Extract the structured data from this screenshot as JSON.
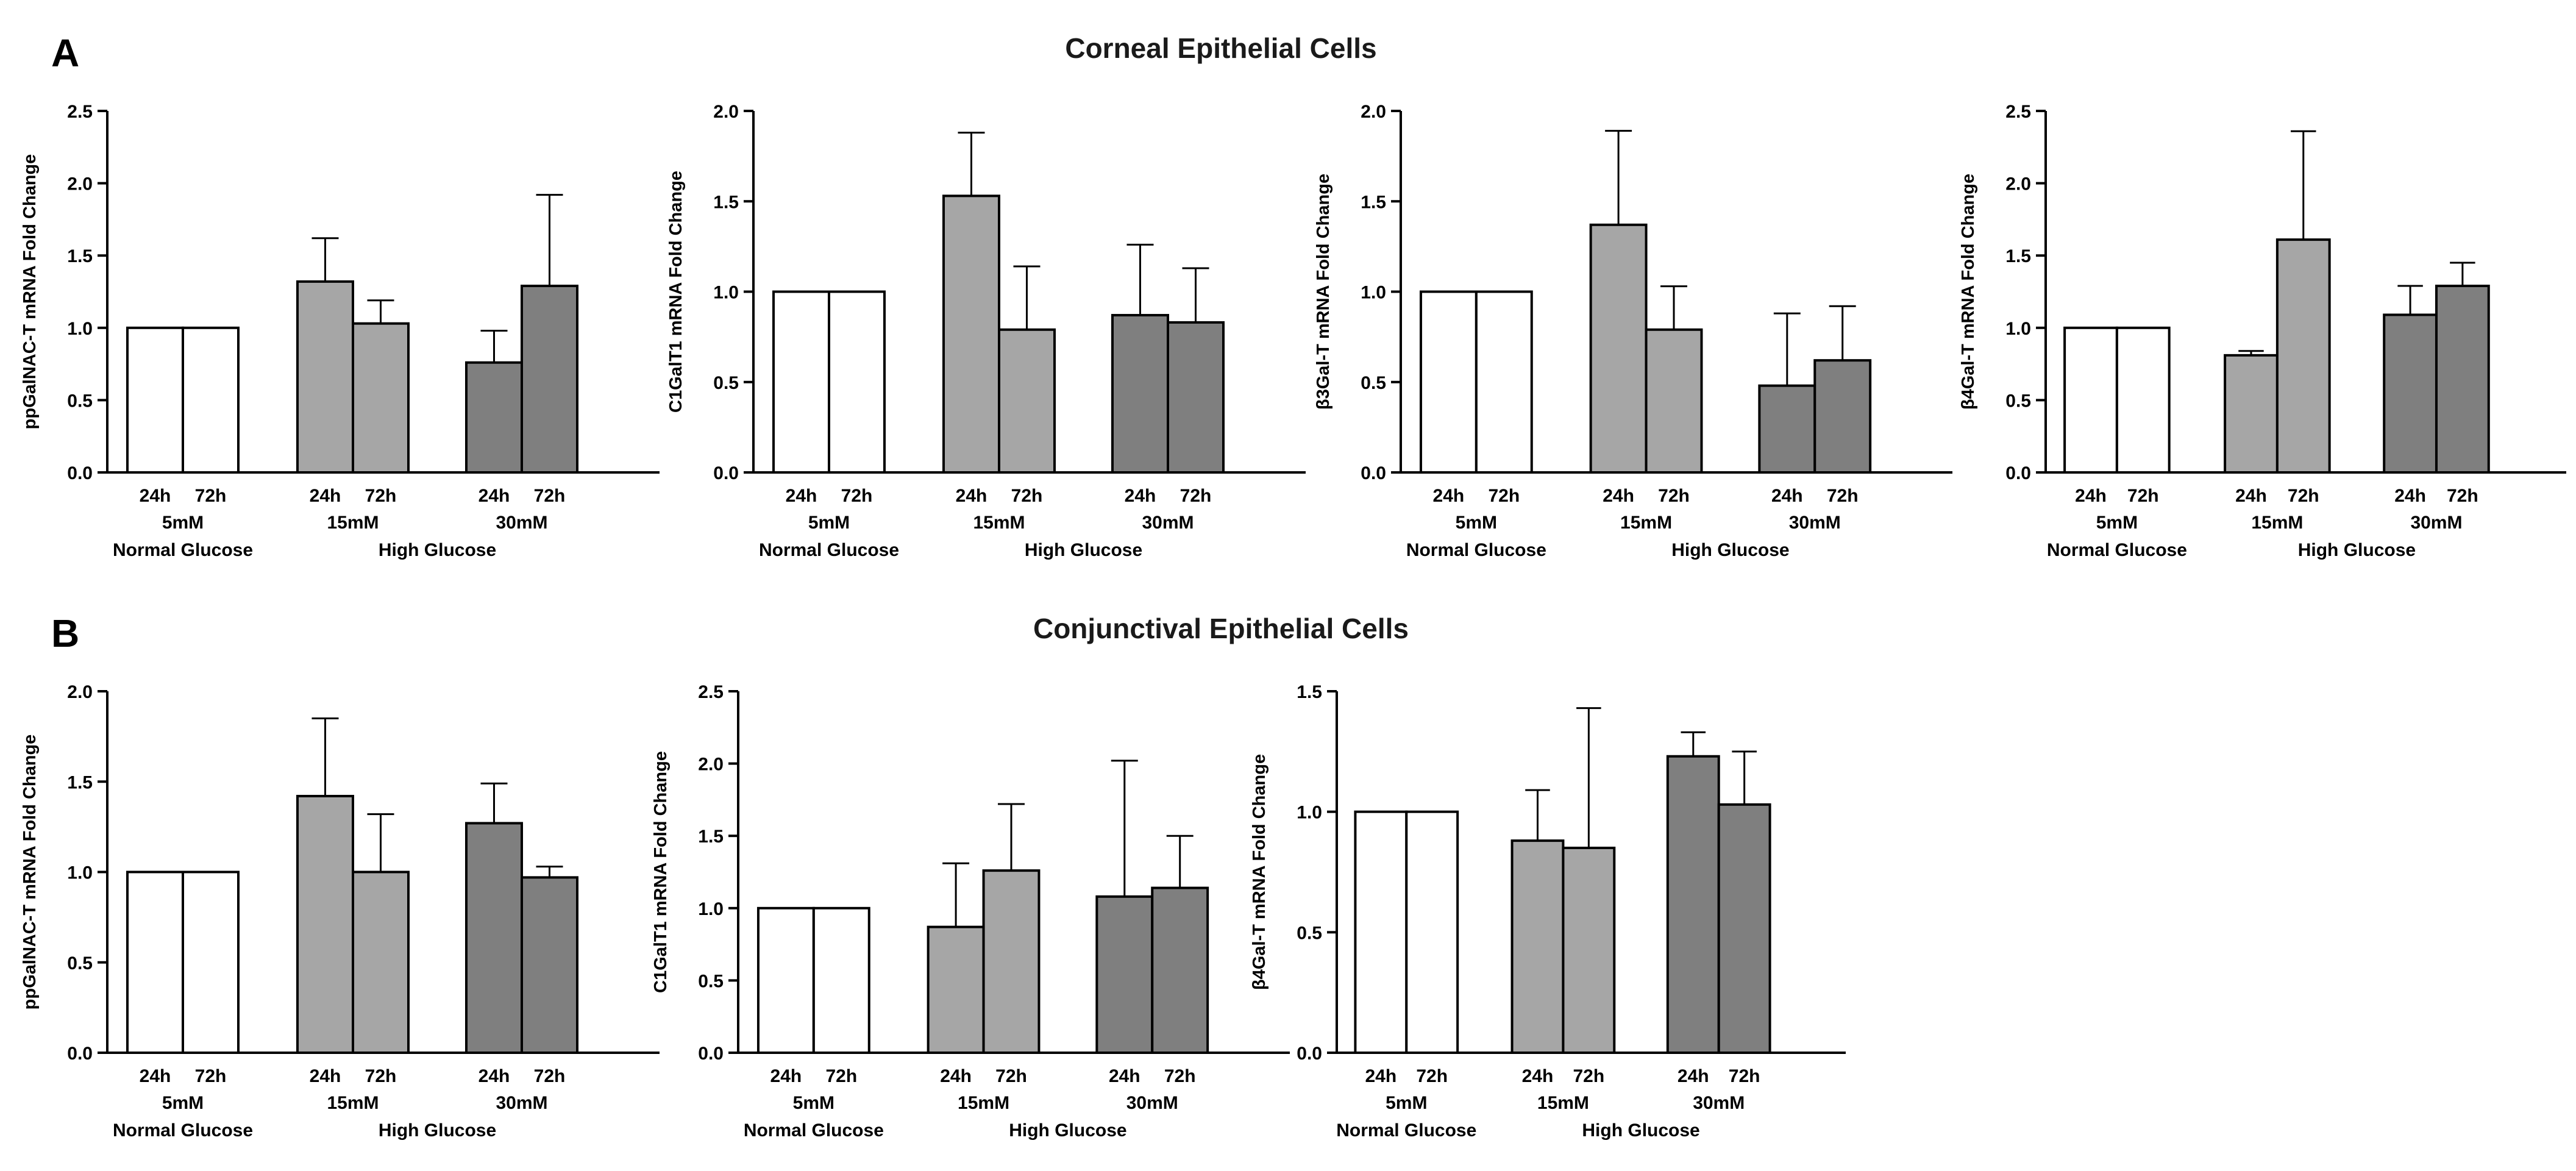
{
  "panels": [
    {
      "letter": "A",
      "title": "Corneal Epithelial Cells"
    },
    {
      "letter": "B",
      "title": "Conjunctival Epithelial Cells"
    }
  ],
  "colors": {
    "normal": "#ffffff",
    "glucose15": "#a6a6a6",
    "glucose30": "#7f7f7f",
    "stroke": "#000000"
  },
  "group_labels": {
    "normal_conc": "5mM",
    "normal_name": "Normal Glucose",
    "high_name": "High Glucose",
    "mid_conc": "15mM",
    "high_conc": "30mM"
  },
  "chart_data": [
    {
      "type": "bar",
      "panel": "A",
      "ylabel": "ppGalNAC-T mRNA Fold Change",
      "ylim": [
        0,
        2.5
      ],
      "yticks": [
        "0.0",
        "0.5",
        "1.0",
        "1.5",
        "2.0",
        "2.5"
      ],
      "categories": [
        "24h",
        "72h",
        "24h",
        "72h",
        "24h",
        "72h"
      ],
      "values": [
        1.0,
        1.0,
        1.32,
        1.03,
        0.76,
        1.29
      ],
      "errors": [
        0,
        0,
        0.3,
        0.16,
        0.22,
        0.63
      ]
    },
    {
      "type": "bar",
      "panel": "A",
      "ylabel": "C1GalT1 mRNA Fold Change",
      "ylim": [
        0,
        2.0
      ],
      "yticks": [
        "0.0",
        "0.5",
        "1.0",
        "1.5",
        "2.0"
      ],
      "categories": [
        "24h",
        "72h",
        "24h",
        "72h",
        "24h",
        "72h"
      ],
      "values": [
        1.0,
        1.0,
        1.53,
        0.79,
        0.87,
        0.83
      ],
      "errors": [
        0,
        0,
        0.35,
        0.35,
        0.39,
        0.3
      ]
    },
    {
      "type": "bar",
      "panel": "A",
      "ylabel": "β3Gal-T mRNA Fold Change",
      "ylim": [
        0,
        2.0
      ],
      "yticks": [
        "0.0",
        "0.5",
        "1.0",
        "1.5",
        "2.0"
      ],
      "categories": [
        "24h",
        "72h",
        "24h",
        "72h",
        "24h",
        "72h"
      ],
      "values": [
        1.0,
        1.0,
        1.37,
        0.79,
        0.48,
        0.62
      ],
      "errors": [
        0,
        0,
        0.52,
        0.24,
        0.4,
        0.3
      ]
    },
    {
      "type": "bar",
      "panel": "A",
      "ylabel": "β4Gal-T mRNA Fold Change",
      "ylim": [
        0,
        2.5
      ],
      "yticks": [
        "0.0",
        "0.5",
        "1.0",
        "1.5",
        "2.0",
        "2.5"
      ],
      "categories": [
        "24h",
        "72h",
        "24h",
        "72h",
        "24h",
        "72h"
      ],
      "values": [
        1.0,
        1.0,
        0.81,
        1.61,
        1.09,
        1.29
      ],
      "errors": [
        0,
        0,
        0.03,
        0.75,
        0.2,
        0.16
      ]
    },
    {
      "type": "bar",
      "panel": "B",
      "ylabel": "ppGalNAC-T mRNA Fold Change",
      "ylim": [
        0,
        2.0
      ],
      "yticks": [
        "0.0",
        "0.5",
        "1.0",
        "1.5",
        "2.0"
      ],
      "categories": [
        "24h",
        "72h",
        "24h",
        "72h",
        "24h",
        "72h"
      ],
      "values": [
        1.0,
        1.0,
        1.42,
        1.0,
        1.27,
        0.97
      ],
      "errors": [
        0,
        0,
        0.43,
        0.32,
        0.22,
        0.06
      ]
    },
    {
      "type": "bar",
      "panel": "B",
      "ylabel": "C1GalT1 mRNA Fold Change",
      "ylim": [
        0,
        2.5
      ],
      "yticks": [
        "0.0",
        "0.5",
        "1.0",
        "1.5",
        "2.0",
        "2.5"
      ],
      "categories": [
        "24h",
        "72h",
        "24h",
        "72h",
        "24h",
        "72h"
      ],
      "values": [
        1.0,
        1.0,
        0.87,
        1.26,
        1.08,
        1.14
      ],
      "errors": [
        0,
        0,
        0.44,
        0.46,
        0.94,
        0.36
      ]
    },
    {
      "type": "bar",
      "panel": "B",
      "ylabel": "β4Gal-T mRNA Fold Change",
      "ylim": [
        0,
        1.5
      ],
      "yticks": [
        "0.0",
        "0.5",
        "1.0",
        "1.5"
      ],
      "categories": [
        "24h",
        "72h",
        "24h",
        "72h",
        "24h",
        "72h"
      ],
      "values": [
        1.0,
        1.0,
        0.88,
        0.85,
        1.23,
        1.03
      ],
      "errors": [
        0,
        0,
        0.21,
        0.58,
        0.1,
        0.22
      ]
    }
  ]
}
